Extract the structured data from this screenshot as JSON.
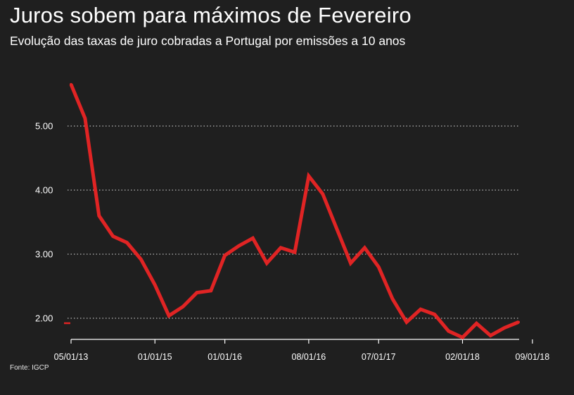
{
  "header": {
    "title": "Juros sobem para máximos de Fevereiro",
    "subtitle": "Evolução das taxas de juro cobradas a Portugal por emissões a 10 anos"
  },
  "footer": {
    "source": "Fonte: IGCP"
  },
  "colors": {
    "background": "#1f1f1f",
    "line": "#e02424",
    "grid": "#ffffff",
    "text": "#ffffff"
  },
  "chart_data": {
    "type": "line",
    "title": "Juros sobem para máximos de Fevereiro",
    "subtitle": "Evolução das taxas de juro cobradas a Portugal por emissões a 10 anos",
    "xlabel": "",
    "ylabel": "",
    "ylim": [
      1.7,
      5.7
    ],
    "yticks": [
      2.0,
      3.0,
      4.0,
      5.0
    ],
    "ytick_labels": [
      "2.00",
      "3.00",
      "4.00",
      "5.00"
    ],
    "x_tick_labels": [
      "05/01/13",
      "01/01/15",
      "01/01/16",
      "08/01/16",
      "07/01/17",
      "02/01/18",
      "09/01/18"
    ],
    "x_tick_index": [
      0,
      6,
      11,
      17,
      22,
      28,
      33
    ],
    "grid": true,
    "series": [
      {
        "values": [
          5.65,
          5.12,
          3.6,
          3.28,
          3.18,
          2.92,
          2.52,
          2.04,
          2.18,
          2.4,
          2.43,
          2.98,
          3.13,
          3.25,
          2.86,
          3.1,
          3.03,
          4.22,
          3.94,
          3.4,
          2.86,
          3.1,
          2.8,
          2.3,
          1.94,
          2.14,
          2.06,
          1.8,
          1.7,
          1.92,
          1.73,
          1.85,
          1.94
        ]
      }
    ]
  }
}
